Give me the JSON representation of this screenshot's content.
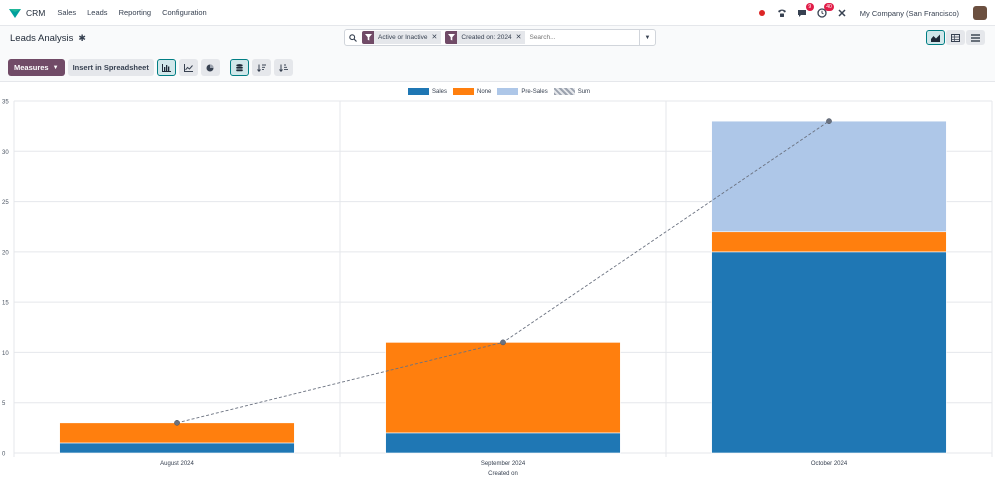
{
  "topbar": {
    "app_name": "CRM",
    "menu": [
      "Sales",
      "Leads",
      "Reporting",
      "Configuration"
    ],
    "messages_badge": "9",
    "activities_badge": "40",
    "company": "My Company (San Francisco)"
  },
  "control_panel": {
    "title": "Leads Analysis",
    "facets": [
      {
        "label": "Active or Inactive"
      },
      {
        "label": "Created on: 2024"
      }
    ],
    "search_placeholder": "Search...",
    "measures_label": "Measures",
    "spreadsheet_label": "Insert in Spreadsheet"
  },
  "colors": {
    "brand": "#714b67",
    "accent": "#017e84",
    "sales": "#1f77b4",
    "none": "#ff7f0e",
    "pre_sales": "#aec7e8"
  },
  "chart_data": {
    "type": "bar",
    "stacked": true,
    "categories": [
      "August 2024",
      "September 2024",
      "October 2024"
    ],
    "series": [
      {
        "name": "Sales",
        "values": [
          1,
          2,
          20
        ],
        "color": "#1f77b4"
      },
      {
        "name": "None",
        "values": [
          2,
          9,
          2
        ],
        "color": "#ff7f0e"
      },
      {
        "name": "Pre-Sales",
        "values": [
          0,
          0,
          11
        ],
        "color": "#aec7e8"
      }
    ],
    "sum_line": {
      "name": "Sum",
      "values": [
        3,
        11,
        33
      ]
    },
    "xlabel": "Created on",
    "ylabel": "",
    "ylim": [
      0,
      35
    ],
    "yticks": [
      0,
      5,
      10,
      15,
      20,
      25,
      30,
      35
    ],
    "grid": true,
    "legend_position": "top-center"
  }
}
